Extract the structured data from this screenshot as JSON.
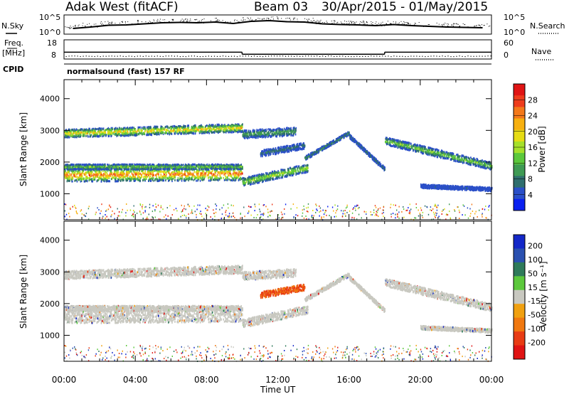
{
  "header": {
    "station": "Adak West (fitACF)",
    "beam": "Beam 03",
    "dates": "30/Apr/2015 - 01/May/2015"
  },
  "chart_data": [
    {
      "type": "line",
      "id": "noise",
      "labels": {
        "left": "N.Sky",
        "right": "N.Search"
      },
      "left_ticks": [
        "10^5",
        "10^0"
      ],
      "right_ticks": [
        "10^5",
        "10^0"
      ],
      "series": [
        {
          "name": "N.Sky",
          "values": [
            1.4,
            1.8,
            2.3,
            2.4,
            2.7,
            3.0,
            3.1,
            3.0,
            3.2,
            2.8,
            3.4,
            3.6,
            3.3,
            3.2,
            2.7,
            2.5,
            2.4,
            2.2,
            2.5,
            2.2,
            2.0,
            1.8,
            1.7,
            1.6
          ]
        },
        {
          "name": "N.Search"
        }
      ],
      "x_hours": [
        0.5,
        1.5,
        2.5,
        3.5,
        4.5,
        5.5,
        6.5,
        7.5,
        8.5,
        9.5,
        10.5,
        11.5,
        12.5,
        13.5,
        14.5,
        15.5,
        16.5,
        17.5,
        18.5,
        19.5,
        20.5,
        21.5,
        22.5,
        23.5
      ]
    },
    {
      "type": "line",
      "id": "freq_nave",
      "labels": {
        "left": "Freq.",
        "left_unit": "[MHz]",
        "right": "Nave"
      },
      "left_ticks": [
        "18",
        "8"
      ],
      "right_ticks": [
        "60",
        "0"
      ],
      "series": [
        {
          "name": "Freq. [MHz]",
          "steps": [
            {
              "from": 0,
              "to": 10,
              "value": 11.3
            },
            {
              "from": 10,
              "to": 18,
              "value": 10.2
            },
            {
              "from": 18,
              "to": 24,
              "value": 11.3
            }
          ]
        },
        {
          "name": "Nave",
          "value": 8
        }
      ]
    },
    {
      "type": "text",
      "id": "cpid",
      "label": "CPID",
      "value": "normalsound (fast) 157 RF"
    },
    {
      "type": "heatmap",
      "id": "power",
      "ylabel": "Slant Range [km]",
      "yticks": [
        "1000",
        "2000",
        "3000",
        "4000"
      ],
      "ylim": [
        180,
        4600
      ],
      "colorbar": {
        "label": "Power [dB]",
        "ticks": [
          "4",
          "8",
          "12",
          "16",
          "20",
          "24",
          "28"
        ],
        "colors": [
          "#0a20f0",
          "#2a4fc8",
          "#2f6e6e",
          "#3f9a54",
          "#5cc83c",
          "#a6e02a",
          "#e6dc14",
          "#f7b010",
          "#f4781a",
          "#ee3c1c",
          "#e01414"
        ]
      },
      "bands": [
        {
          "from": 0.0,
          "to": 10.0,
          "center": 2930,
          "width": 260,
          "peak_db": 24,
          "rise_km": 180
        },
        {
          "from": 0.0,
          "to": 10.0,
          "center": 1620,
          "width": 420,
          "peak_db": 30,
          "rise_km": 40
        },
        {
          "from": 0.0,
          "to": 10.0,
          "center": 1880,
          "width": 160,
          "peak_db": 16,
          "rise_km": 0
        },
        {
          "from": 10.0,
          "to": 13.0,
          "center": 2900,
          "width": 260,
          "peak_db": 12,
          "rise_km": 100
        },
        {
          "from": 10.0,
          "to": 13.7,
          "center": 1400,
          "width": 260,
          "peak_db": 18,
          "rise_km": 450
        },
        {
          "from": 11.0,
          "to": 13.5,
          "center": 2300,
          "width": 200,
          "peak_db": 8,
          "rise_km": 250
        },
        {
          "from": 13.5,
          "to": 16.0,
          "center": 2150,
          "width": 120,
          "peak_db": 10,
          "rise_km": 800
        },
        {
          "from": 16.0,
          "to": 18.0,
          "center": 2850,
          "width": 120,
          "peak_db": 8,
          "rise_km": -1050
        },
        {
          "from": 18.0,
          "to": 24.0,
          "center": 2700,
          "width": 240,
          "peak_db": 16,
          "rise_km": -800
        },
        {
          "from": 20.0,
          "to": 24.0,
          "center": 1270,
          "width": 120,
          "peak_db": 5,
          "rise_km": -100
        }
      ]
    },
    {
      "type": "heatmap",
      "id": "velocity",
      "ylabel": "Slant Range [km]",
      "yticks": [
        "1000",
        "2000",
        "3000",
        "4000"
      ],
      "ylim": [
        180,
        4600
      ],
      "xticks": [
        "00:00",
        "04:00",
        "08:00",
        "12:00",
        "16:00",
        "20:00",
        "00:00"
      ],
      "xlabel": "Time UT",
      "colorbar": {
        "label": "Velocity [m s⁻¹]",
        "ticks": [
          "200",
          "100",
          "50",
          "15",
          "-15",
          "-50",
          "-100",
          "-200"
        ],
        "colors": [
          "#1428c8",
          "#2a50b0",
          "#2e7a5a",
          "#5cc83c",
          "#c8c8c0",
          "#f0a010",
          "#f07810",
          "#e83c14",
          "#e01414"
        ]
      }
    }
  ]
}
